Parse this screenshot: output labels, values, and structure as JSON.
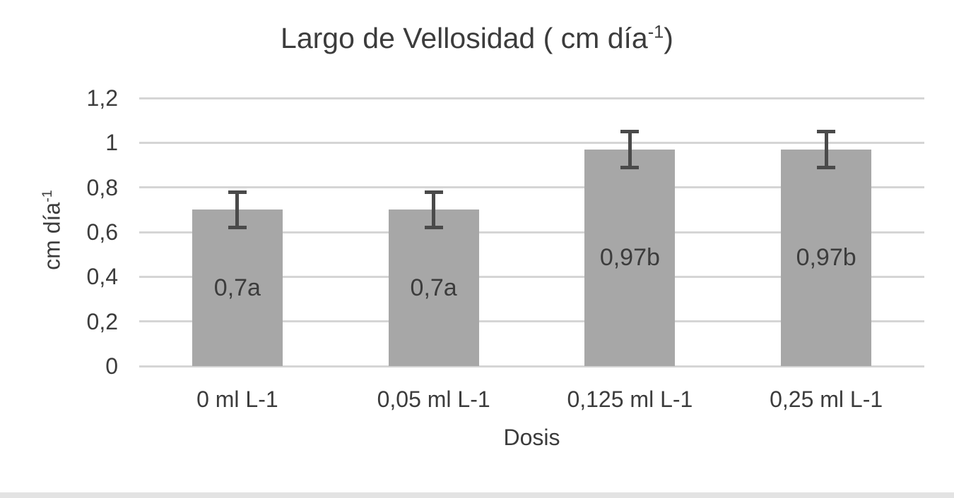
{
  "chart_data": {
    "type": "bar",
    "title": {
      "prefix": "Largo de Vellosidad ( cm día",
      "sup": "-1",
      "suffix": ")"
    },
    "ylabel": {
      "prefix": "cm día",
      "sup": "-1"
    },
    "xlabel": "Dosis",
    "categories": [
      "0 ml L-1",
      "0,05 ml L-1",
      "0,125 ml L-1",
      "0,25 ml L-1"
    ],
    "values": [
      0.7,
      0.7,
      0.97,
      0.97
    ],
    "bar_labels": [
      "0,7a",
      "0,7a",
      "0,97b",
      "0,97b"
    ],
    "error_bars": [
      0.08,
      0.08,
      0.08,
      0.08
    ],
    "yticks": [
      {
        "label": "1,2",
        "value": 1.2
      },
      {
        "label": "1",
        "value": 1.0
      },
      {
        "label": "0,8",
        "value": 0.8
      },
      {
        "label": "0,6",
        "value": 0.6
      },
      {
        "label": "0,4",
        "value": 0.4
      },
      {
        "label": "0,2",
        "value": 0.2
      },
      {
        "label": "0",
        "value": 0.0
      }
    ],
    "ylim": [
      0,
      1.2
    ],
    "grid": true,
    "legend": "none",
    "colors": {
      "bar_fill": "#a7a7a7",
      "error_bar": "#4a4a4a",
      "gridline": "#d5d5d5",
      "text": "#3c3c3c",
      "bottom_strip": "#e3e3e3"
    }
  }
}
